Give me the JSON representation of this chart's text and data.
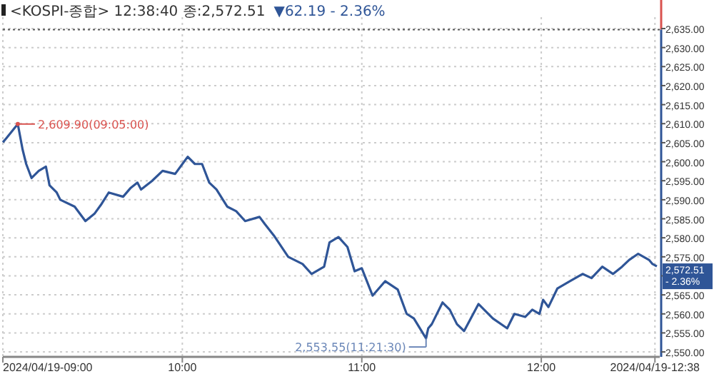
{
  "chart_data": {
    "type": "line",
    "title": "<KOSPI-종합> 12:38:40 종:2,572.51",
    "subtitle": "▼62.19 - 2.36%",
    "x": [
      9.0,
      9.02,
      9.0833,
      9.11,
      9.13,
      9.16,
      9.2,
      9.24,
      9.26,
      9.3,
      9.32,
      9.4,
      9.46,
      9.51,
      9.55,
      9.59,
      9.67,
      9.71,
      9.75,
      9.77,
      9.83,
      9.89,
      9.96,
      10.03,
      10.07,
      10.11,
      10.15,
      10.19,
      10.25,
      10.3,
      10.35,
      10.43,
      10.46,
      10.51,
      10.59,
      10.67,
      10.72,
      10.79,
      10.82,
      10.87,
      10.92,
      10.96,
      11.0,
      11.06,
      11.13,
      11.2,
      11.25,
      11.29,
      11.358,
      11.37,
      11.39,
      11.45,
      11.49,
      11.53,
      11.57,
      11.65,
      11.73,
      11.81,
      11.85,
      11.91,
      11.95,
      11.99,
      12.01,
      12.04,
      12.09,
      12.16,
      12.23,
      12.28,
      12.34,
      12.4,
      12.45,
      12.49,
      12.54,
      12.6,
      12.62,
      12.644
    ],
    "series": [
      {
        "color": "#2f5597",
        "values": [
          2605.1,
          2606.2,
          2609.9,
          2603.2,
          2599.4,
          2595.7,
          2597.6,
          2598.7,
          2593.8,
          2591.9,
          2590,
          2588.2,
          2584.4,
          2586.3,
          2588.9,
          2591.9,
          2590.8,
          2593,
          2594.5,
          2592.7,
          2594.9,
          2597.6,
          2596.8,
          2601.3,
          2599.4,
          2599.4,
          2594.5,
          2592.7,
          2588.2,
          2587,
          2584.4,
          2585.5,
          2583.6,
          2580.6,
          2575,
          2573.1,
          2570.5,
          2572.4,
          2578.8,
          2580.2,
          2577.6,
          2571.2,
          2572,
          2564.8,
          2568.6,
          2566.4,
          2560,
          2558.8,
          2553.55,
          2556.2,
          2557.3,
          2563,
          2561.1,
          2557.3,
          2555.5,
          2562.6,
          2558.8,
          2556.2,
          2560,
          2559.2,
          2561.1,
          2560,
          2563.7,
          2561.8,
          2566.7,
          2568.6,
          2570.5,
          2569.4,
          2572.4,
          2570.5,
          2572.4,
          2574.2,
          2575.8,
          2574.2,
          2573.1,
          2572.51
        ]
      }
    ],
    "xlim": [
      9,
      12.66
    ],
    "xticks": [
      {
        "value": 9,
        "label": "2024/04/19-09:00"
      },
      {
        "value": 10,
        "label": "10:00"
      },
      {
        "value": 11,
        "label": "11:00"
      },
      {
        "value": 12,
        "label": "12:00"
      },
      {
        "value": 12.6333,
        "label": "2024/04/19-12:38"
      }
    ],
    "ylim": [
      2548.7,
      2638
    ],
    "yticks": [
      {
        "value": 2550,
        "label": "2,550.00"
      },
      {
        "value": 2555,
        "label": "2,555.00"
      },
      {
        "value": 2560,
        "label": "2,560.00"
      },
      {
        "value": 2565,
        "label": "2,565.00"
      },
      {
        "value": 2570,
        "label": null
      },
      {
        "value": 2575,
        "label": "2,575.00"
      },
      {
        "value": 2580,
        "label": "2,580.00"
      },
      {
        "value": 2585,
        "label": "2,585.00"
      },
      {
        "value": 2590,
        "label": "2,590.00"
      },
      {
        "value": 2595,
        "label": "2,595.00"
      },
      {
        "value": 2600,
        "label": "2,600.00"
      },
      {
        "value": 2605,
        "label": "2,605.00"
      },
      {
        "value": 2610,
        "label": "2,610.00"
      },
      {
        "value": 2615,
        "label": "2,615.00"
      },
      {
        "value": 2620,
        "label": "2,620.00"
      },
      {
        "value": 2625,
        "label": "2,625.00"
      },
      {
        "value": 2630,
        "label": "2,630.00"
      },
      {
        "value": 2635,
        "label": "2,635.00"
      }
    ],
    "ref_lines": [
      {
        "axis": "y",
        "value": 2634.7,
        "color": "#555555",
        "line_style": "dotted"
      }
    ],
    "annotations": [
      {
        "text": "2,609.90(09:05:00)",
        "x": 9.0833,
        "y": 2609.9
      },
      {
        "text": "2,553.55(11:21:30)",
        "x": 11.358,
        "y": 2553.55
      },
      {
        "text": "2,572.51",
        "x": 12.644,
        "y": 2572.51
      },
      {
        "text": "- 2.36%",
        "x": 12.644,
        "y": 2572.51
      }
    ],
    "grid": true,
    "marker": "none",
    "line_style": "solid"
  }
}
